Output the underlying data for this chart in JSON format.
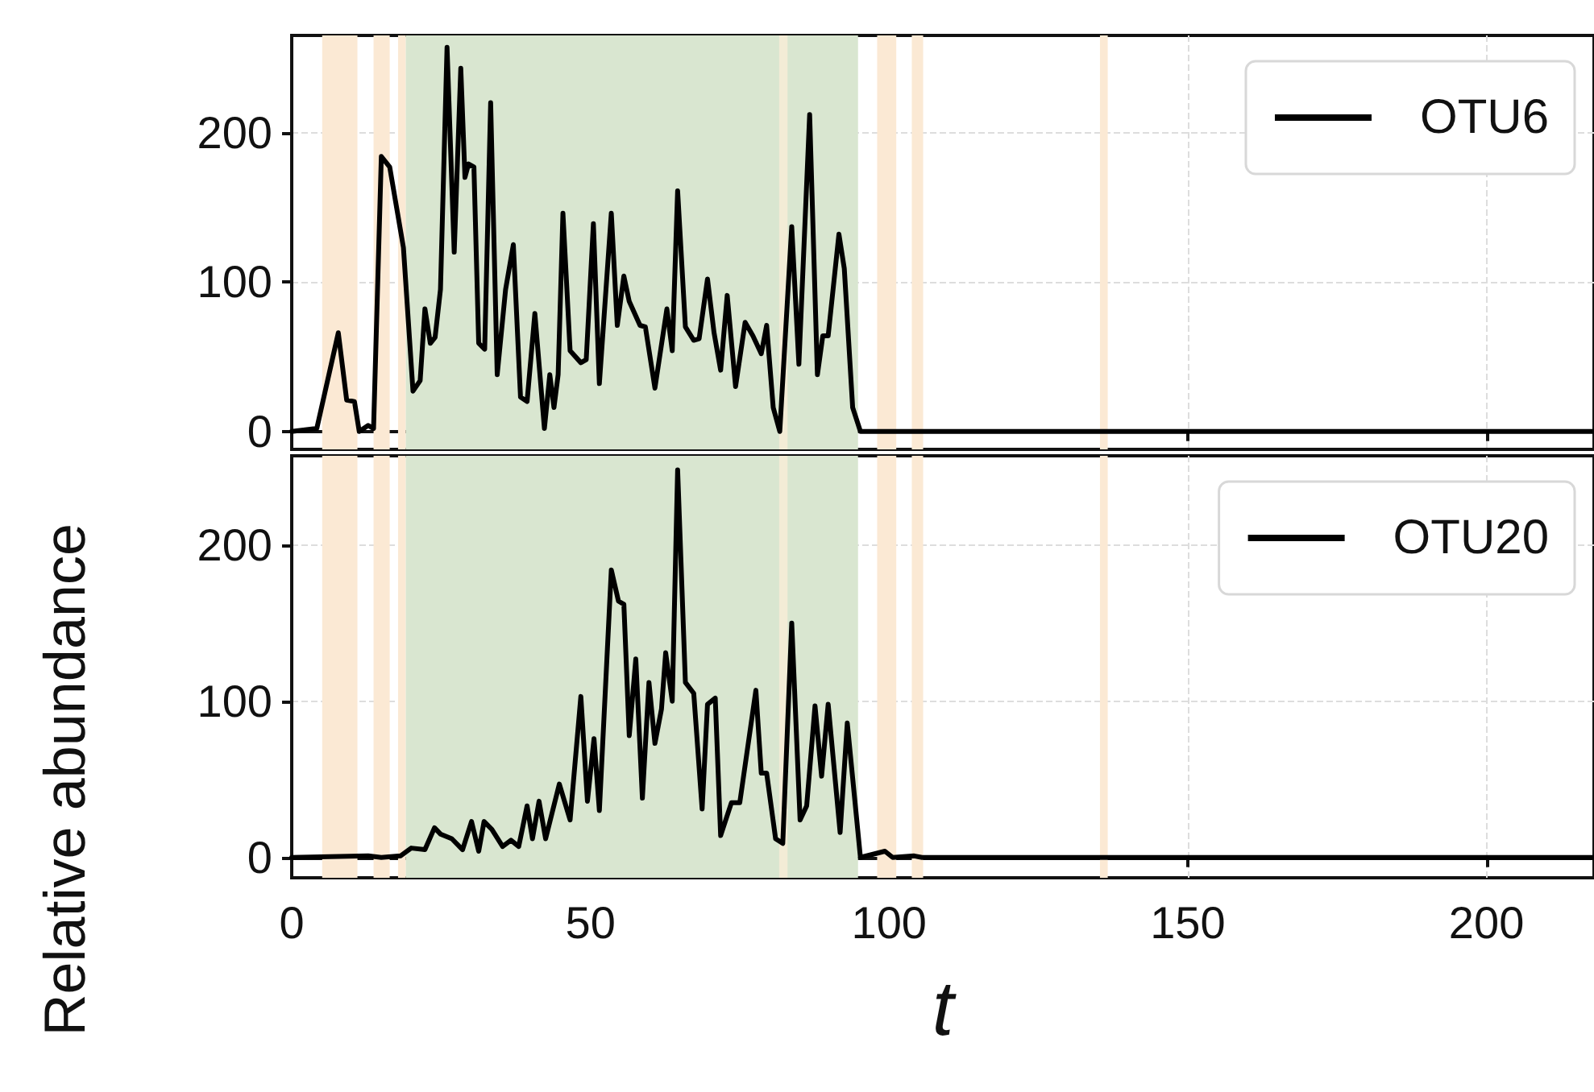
{
  "chart_data": [
    {
      "type": "line",
      "ylabel": "Relative abundance",
      "xlim": [
        0,
        218
      ],
      "xticks": [
        0,
        50,
        100,
        150,
        200
      ],
      "ylim": [
        -12,
        265
      ],
      "yticks": [
        0,
        100,
        200
      ],
      "grid": true,
      "legend": "top right",
      "tick_labels": "y",
      "line_style": "solid",
      "bands": [
        {
          "axis": "x",
          "from": 5.1,
          "to": 11,
          "color": "#fbe9d4"
        },
        {
          "axis": "x",
          "from": 13.7,
          "to": 16.4,
          "color": "#fbe9d4"
        },
        {
          "axis": "x",
          "from": 17.8,
          "to": 19.1,
          "color": "#fbe9d4"
        },
        {
          "axis": "x",
          "from": 19.1,
          "to": 94.8,
          "color": "#d9e6d0"
        },
        {
          "axis": "x",
          "from": 81.6,
          "to": 83,
          "color": "#f3ecd6"
        },
        {
          "axis": "x",
          "from": 98,
          "to": 101.2,
          "color": "#fbe9d4"
        },
        {
          "axis": "x",
          "from": 103.8,
          "to": 105.7,
          "color": "#fbe9d4"
        },
        {
          "axis": "x",
          "from": 135.3,
          "to": 136.6,
          "color": "#fbe9d4"
        }
      ],
      "series": [
        {
          "name": "OTU6",
          "color": "#000000",
          "x": [
            0,
            4.2,
            7.8,
            9.2,
            10.5,
            11.3,
            12.8,
            13.7,
            15,
            16.4,
            18.7,
            20.3,
            21.5,
            22.3,
            23.2,
            24,
            24.9,
            26,
            27.2,
            28.3,
            29,
            29.6,
            30.5,
            31.3,
            32.3,
            33.3,
            34.4,
            35.8,
            37.1,
            38.3,
            39.4,
            40.7,
            42.3,
            43.2,
            43.9,
            44.6,
            45.4,
            46.6,
            48.4,
            49.3,
            50.5,
            51.5,
            53.5,
            54.5,
            55.6,
            56.5,
            58.3,
            59.2,
            60.8,
            62.8,
            63.7,
            64.6,
            65.9,
            67.3,
            68.2,
            69.6,
            70.7,
            71.8,
            72.9,
            74.3,
            75.9,
            77.2,
            78.6,
            79.5,
            80.6,
            81.7,
            83.7,
            84.9,
            86.7,
            88,
            88.9,
            89.8,
            91.6,
            92.5,
            93.9,
            95.2,
            218
          ],
          "values": [
            0,
            2,
            66,
            21,
            20,
            0,
            4,
            2,
            184,
            177,
            123,
            27,
            34,
            82,
            59,
            63,
            95,
            257,
            120,
            243,
            170,
            179,
            177,
            59,
            55,
            220,
            38,
            95,
            125,
            23,
            20,
            79,
            2,
            38,
            16,
            38,
            146,
            54,
            46,
            48,
            139,
            32,
            146,
            71,
            104,
            87,
            71,
            70,
            29,
            82,
            54,
            161,
            70,
            61,
            62,
            102,
            66,
            41,
            91,
            30,
            73,
            64,
            52,
            71,
            16,
            0,
            137,
            45,
            212,
            38,
            64,
            64,
            132,
            109,
            16,
            0,
            0
          ]
        }
      ]
    },
    {
      "type": "line",
      "xlabel": "t",
      "xlim": [
        0,
        218
      ],
      "xticks": [
        0,
        50,
        100,
        150,
        200
      ],
      "ylim": [
        -13,
        257
      ],
      "yticks": [
        0,
        100,
        200
      ],
      "grid": true,
      "legend": "top right",
      "line_style": "solid",
      "bands": [
        {
          "axis": "x",
          "from": 5.1,
          "to": 11,
          "color": "#fbe9d4"
        },
        {
          "axis": "x",
          "from": 13.7,
          "to": 16.4,
          "color": "#fbe9d4"
        },
        {
          "axis": "x",
          "from": 17.8,
          "to": 19.1,
          "color": "#fbe9d4"
        },
        {
          "axis": "x",
          "from": 19.1,
          "to": 94.8,
          "color": "#d9e6d0"
        },
        {
          "axis": "x",
          "from": 81.6,
          "to": 83,
          "color": "#f3ecd6"
        },
        {
          "axis": "x",
          "from": 98,
          "to": 101.2,
          "color": "#fbe9d4"
        },
        {
          "axis": "x",
          "from": 103.8,
          "to": 105.7,
          "color": "#fbe9d4"
        },
        {
          "axis": "x",
          "from": 135.3,
          "to": 136.6,
          "color": "#fbe9d4"
        }
      ],
      "series": [
        {
          "name": "OTU20",
          "color": "#000000",
          "x": [
            0,
            12.8,
            15,
            18.2,
            20,
            22.3,
            23.9,
            24.9,
            26.8,
            28.6,
            30.1,
            31.3,
            32.2,
            33.5,
            35.3,
            36.7,
            38,
            39.4,
            40.3,
            41.4,
            42.5,
            44.8,
            46.6,
            48.4,
            49.5,
            50.6,
            51.5,
            53.5,
            54.7,
            55.6,
            56.5,
            57.6,
            58.7,
            59.8,
            60.8,
            61.9,
            62.6,
            63.7,
            64.6,
            65.9,
            67.3,
            68.7,
            69.6,
            70.9,
            71.8,
            73.6,
            75,
            77.7,
            78.6,
            79.5,
            81,
            82.2,
            83.7,
            85.1,
            86.2,
            87.6,
            88.7,
            89.8,
            91.8,
            93,
            95.2,
            99.3,
            100.6,
            104.2,
            105.5,
            218
          ],
          "values": [
            0,
            1,
            0,
            1,
            6,
            5,
            19,
            15,
            12,
            5,
            23,
            4,
            23,
            18,
            7,
            11,
            7,
            33,
            12,
            36,
            12,
            47,
            24,
            103,
            36,
            76,
            30,
            184,
            164,
            162,
            78,
            127,
            38,
            112,
            73,
            95,
            131,
            100,
            248,
            112,
            105,
            31,
            98,
            102,
            14,
            35,
            35,
            107,
            54,
            54,
            12,
            9,
            150,
            24,
            33,
            97,
            52,
            98,
            16,
            86,
            0,
            4,
            0,
            1,
            0,
            0
          ]
        }
      ]
    }
  ]
}
